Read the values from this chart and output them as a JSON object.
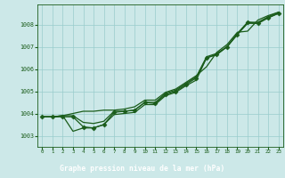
{
  "title": "Graphe pression niveau de la mer (hPa)",
  "bg_color": "#cce8e8",
  "plot_bg_color": "#cce8e8",
  "line_color": "#1a5c1a",
  "grid_color": "#99cccc",
  "label_bg": "#2a6b2a",
  "label_text": "#ffffff",
  "xlim": [
    -0.5,
    23.5
  ],
  "ylim": [
    1002.5,
    1008.9
  ],
  "yticks": [
    1003,
    1004,
    1005,
    1006,
    1007,
    1008
  ],
  "xticks": [
    0,
    1,
    2,
    3,
    4,
    5,
    6,
    7,
    8,
    9,
    10,
    11,
    12,
    13,
    14,
    15,
    16,
    17,
    18,
    19,
    20,
    21,
    22,
    23
  ],
  "series": [
    {
      "x": [
        0,
        1,
        2,
        3,
        4,
        5,
        6,
        7,
        8,
        9,
        10,
        11,
        12,
        13,
        14,
        15,
        16,
        17,
        18,
        19,
        20,
        21,
        22,
        23
      ],
      "y": [
        1003.85,
        1003.85,
        1003.85,
        1003.85,
        1003.4,
        1003.35,
        1003.5,
        1004.05,
        1004.1,
        1004.15,
        1004.5,
        1004.45,
        1004.85,
        1005.0,
        1005.3,
        1005.6,
        1006.5,
        1006.65,
        1007.0,
        1007.55,
        1008.1,
        1008.05,
        1008.3,
        1008.5
      ],
      "marker": "D",
      "markersize": 2.5,
      "linewidth": 0.9
    },
    {
      "x": [
        0,
        1,
        2,
        3,
        4,
        5,
        6,
        7,
        8,
        9,
        10,
        11,
        12,
        13,
        14,
        15,
        16,
        17,
        18,
        19,
        20,
        21,
        22,
        23
      ],
      "y": [
        1003.85,
        1003.85,
        1003.9,
        1004.0,
        1004.1,
        1004.1,
        1004.15,
        1004.15,
        1004.2,
        1004.3,
        1004.6,
        1004.6,
        1004.95,
        1005.1,
        1005.4,
        1005.7,
        1006.1,
        1006.75,
        1007.1,
        1007.65,
        1007.7,
        1008.2,
        1008.4,
        1008.55
      ],
      "marker": null,
      "markersize": 0,
      "linewidth": 0.9
    },
    {
      "x": [
        0,
        1,
        2,
        3,
        4,
        5,
        6,
        7,
        8,
        9,
        10,
        11,
        12,
        13,
        14,
        15,
        16,
        17,
        18,
        19,
        20,
        21,
        22,
        23
      ],
      "y": [
        1003.85,
        1003.85,
        1003.9,
        1003.9,
        1003.6,
        1003.55,
        1003.65,
        1004.1,
        1004.1,
        1004.15,
        1004.5,
        1004.5,
        1004.9,
        1005.05,
        1005.35,
        1005.65,
        1006.55,
        1006.7,
        1007.0,
        1007.6,
        1008.1,
        1008.1,
        1008.35,
        1008.55
      ],
      "marker": null,
      "markersize": 0,
      "linewidth": 0.9
    },
    {
      "x": [
        0,
        1,
        2,
        3,
        4,
        5,
        6,
        7,
        8,
        9,
        10,
        11,
        12,
        13,
        14,
        15,
        16,
        17,
        18,
        19,
        20,
        21,
        22,
        23
      ],
      "y": [
        1003.85,
        1003.85,
        1003.9,
        1003.2,
        1003.35,
        1003.35,
        1003.5,
        1003.95,
        1004.0,
        1004.05,
        1004.4,
        1004.4,
        1004.8,
        1004.95,
        1005.25,
        1005.5,
        1006.5,
        1006.65,
        1007.0,
        1007.55,
        1008.05,
        1008.05,
        1008.3,
        1008.5
      ],
      "marker": null,
      "markersize": 0,
      "linewidth": 0.9
    }
  ]
}
